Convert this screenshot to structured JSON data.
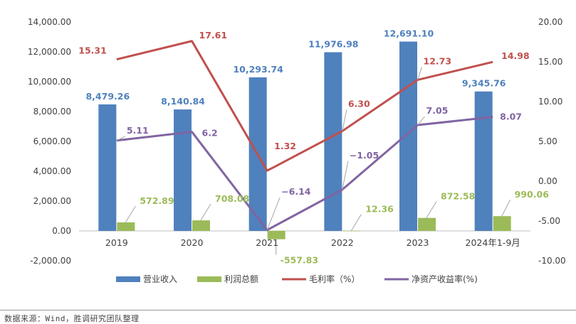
{
  "chart_data": {
    "type": "bar",
    "categories": [
      "2019",
      "2020",
      "2021",
      "2022",
      "2023",
      "2024年1-9月"
    ],
    "series": [
      {
        "name": "营业收入",
        "type": "bar",
        "axis": "left",
        "color": "#4f81bd",
        "values": [
          8479.26,
          8140.84,
          10293.74,
          11976.98,
          12691.1,
          9345.76
        ],
        "labels": [
          "8,479.26",
          "8,140.84",
          "10,293.74",
          "11,976.98",
          "12,691.10",
          "9,345.76"
        ]
      },
      {
        "name": "利润总额",
        "type": "bar",
        "axis": "left",
        "color": "#9bbb59",
        "values": [
          572.89,
          708.08,
          -557.83,
          12.36,
          872.58,
          990.06
        ],
        "labels": [
          "572.89",
          "708.08",
          "-557.83",
          "12.36",
          "872.58",
          "990.06"
        ]
      },
      {
        "name": "毛利率（%）",
        "type": "line",
        "axis": "right",
        "color": "#c0504d",
        "values": [
          15.31,
          17.61,
          1.32,
          6.3,
          12.73,
          14.98
        ],
        "labels": [
          "15.31",
          "17.61",
          "1.32",
          "6.30",
          "12.73",
          "14.98"
        ]
      },
      {
        "name": "净资产收益率(%)",
        "type": "line",
        "axis": "right",
        "color": "#8064a2",
        "values": [
          5.11,
          6.2,
          -6.14,
          -1.05,
          7.05,
          8.07
        ],
        "labels": [
          "5.11",
          "6.2",
          "-6.14",
          "-1.05",
          "7.05",
          "8.07"
        ]
      }
    ],
    "y_left": {
      "min": -2000,
      "max": 14000,
      "step": 2000,
      "ticks": [
        "-2,000.00",
        "0.00",
        "2,000.00",
        "4,000.00",
        "6,000.00",
        "8,000.00",
        "10,000.00",
        "12,000.00",
        "14,000.00"
      ]
    },
    "y_right": {
      "min": -10,
      "max": 20,
      "step": 5,
      "ticks": [
        "-10.00",
        "-5.00",
        "0.00",
        "5.00",
        "10.00",
        "15.00",
        "20.00"
      ]
    },
    "legend_position": "bottom",
    "grid": false
  },
  "footer": {
    "source": "数据来源：Wind，胜调研究团队整理"
  }
}
